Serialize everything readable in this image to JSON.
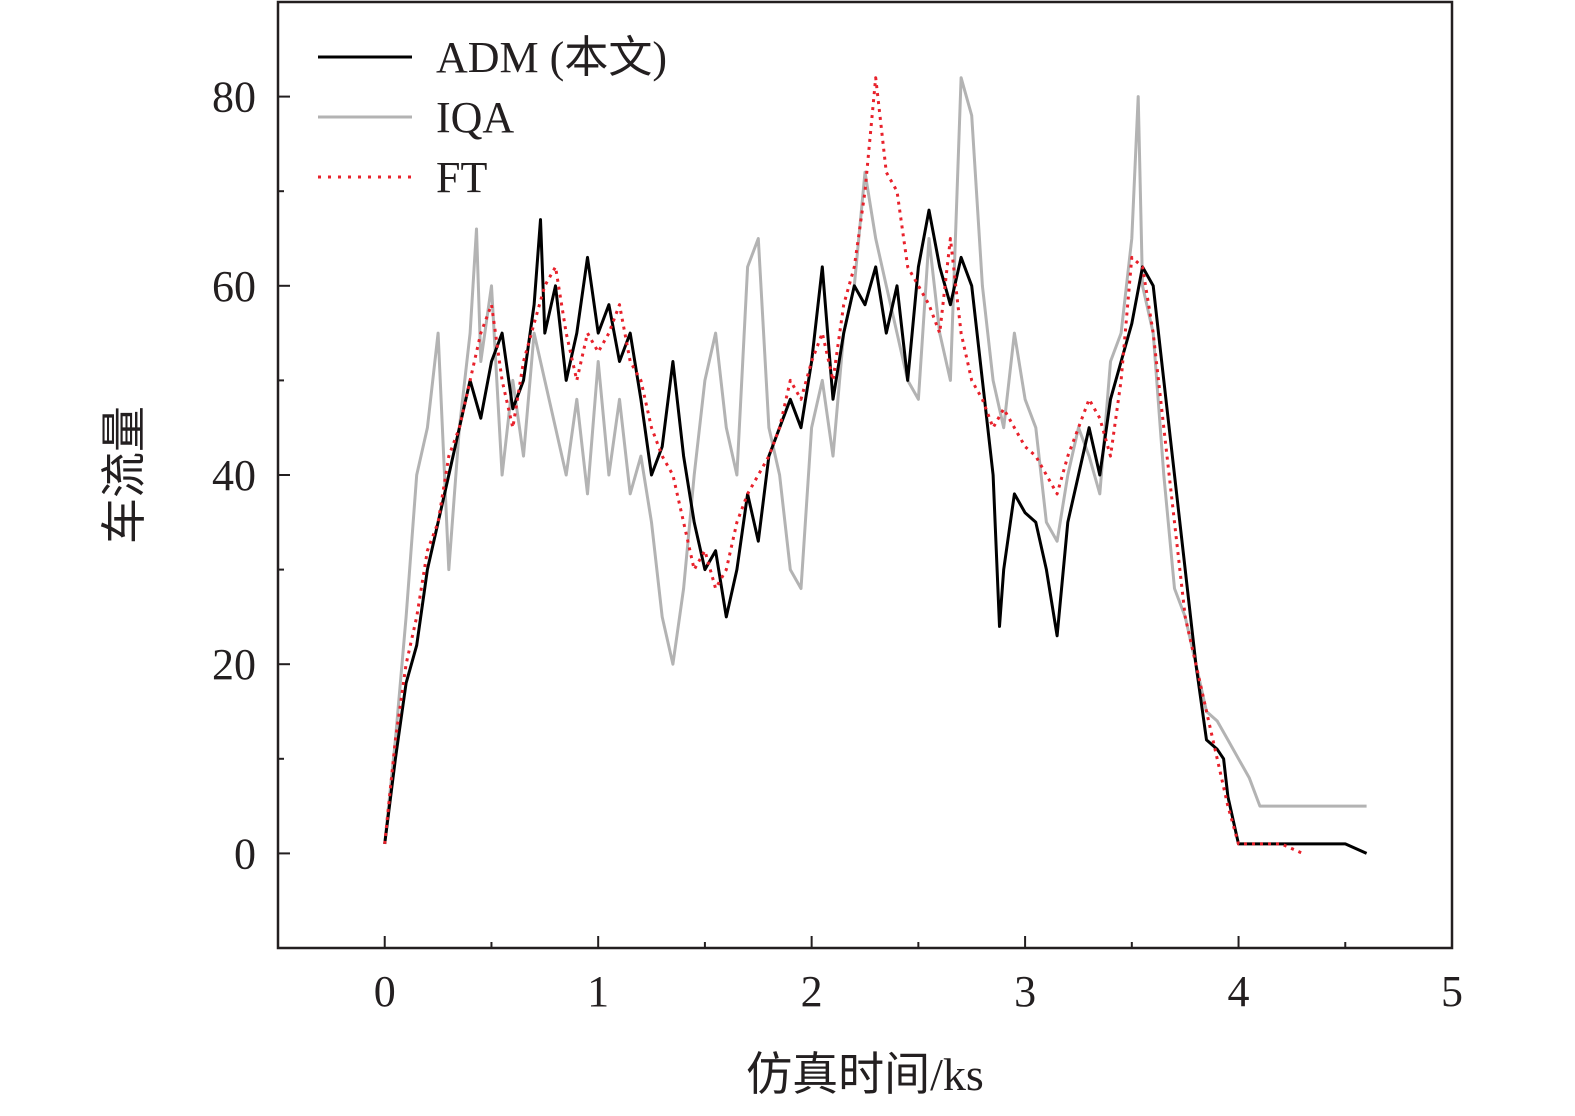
{
  "chart_data": {
    "type": "line",
    "xlabel": "仿真时间/ks",
    "ylabel": "车流量",
    "xlim": [
      -0.5,
      5
    ],
    "ylim": [
      -10,
      90
    ],
    "xticks": [
      0,
      1,
      2,
      3,
      4,
      5
    ],
    "xtick_labels": [
      "0",
      "1",
      "2",
      "3",
      "4",
      "5"
    ],
    "yticks": [
      0,
      20,
      40,
      60,
      80
    ],
    "ytick_labels": [
      "0",
      "20",
      "40",
      "60",
      "80"
    ],
    "grid": false,
    "legend_position": "top-left",
    "series": [
      {
        "name": "ADM (本文)",
        "color": "#000000",
        "style": "solid",
        "x": [
          0,
          0.05,
          0.1,
          0.15,
          0.2,
          0.25,
          0.3,
          0.35,
          0.4,
          0.45,
          0.5,
          0.55,
          0.6,
          0.65,
          0.7,
          0.73,
          0.75,
          0.8,
          0.85,
          0.9,
          0.95,
          1.0,
          1.05,
          1.1,
          1.15,
          1.2,
          1.25,
          1.3,
          1.35,
          1.4,
          1.45,
          1.5,
          1.55,
          1.6,
          1.65,
          1.7,
          1.75,
          1.8,
          1.85,
          1.9,
          1.95,
          2.0,
          2.05,
          2.1,
          2.15,
          2.2,
          2.25,
          2.3,
          2.35,
          2.4,
          2.45,
          2.5,
          2.55,
          2.6,
          2.65,
          2.7,
          2.75,
          2.8,
          2.85,
          2.88,
          2.9,
          2.95,
          3.0,
          3.05,
          3.1,
          3.15,
          3.2,
          3.25,
          3.3,
          3.35,
          3.4,
          3.45,
          3.5,
          3.55,
          3.6,
          3.65,
          3.7,
          3.75,
          3.8,
          3.85,
          3.9,
          3.93,
          3.95,
          4.0,
          4.05,
          4.1,
          4.2,
          4.3,
          4.4,
          4.5,
          4.6
        ],
        "y": [
          1,
          10,
          18,
          22,
          30,
          35,
          40,
          45,
          50,
          46,
          52,
          55,
          47,
          50,
          58,
          67,
          55,
          60,
          50,
          55,
          63,
          55,
          58,
          52,
          55,
          48,
          40,
          43,
          52,
          42,
          35,
          30,
          32,
          25,
          30,
          38,
          33,
          42,
          45,
          48,
          45,
          52,
          62,
          48,
          55,
          60,
          58,
          62,
          55,
          60,
          50,
          62,
          68,
          62,
          58,
          63,
          60,
          50,
          40,
          24,
          30,
          38,
          36,
          35,
          30,
          23,
          35,
          40,
          45,
          40,
          48,
          52,
          56,
          62,
          60,
          50,
          40,
          30,
          20,
          12,
          11,
          10,
          6,
          1,
          1,
          1,
          1,
          1,
          1,
          1,
          0
        ]
      },
      {
        "name": "IQA",
        "color": "#b3b3b3",
        "style": "solid",
        "x": [
          0,
          0.05,
          0.1,
          0.15,
          0.2,
          0.25,
          0.3,
          0.35,
          0.4,
          0.43,
          0.45,
          0.5,
          0.55,
          0.6,
          0.65,
          0.7,
          0.75,
          0.8,
          0.85,
          0.9,
          0.95,
          1.0,
          1.05,
          1.1,
          1.15,
          1.2,
          1.25,
          1.3,
          1.35,
          1.4,
          1.45,
          1.5,
          1.55,
          1.6,
          1.65,
          1.7,
          1.75,
          1.8,
          1.85,
          1.9,
          1.95,
          2.0,
          2.05,
          2.1,
          2.15,
          2.2,
          2.25,
          2.3,
          2.35,
          2.4,
          2.45,
          2.5,
          2.55,
          2.6,
          2.65,
          2.7,
          2.75,
          2.8,
          2.85,
          2.9,
          2.95,
          3.0,
          3.05,
          3.1,
          3.15,
          3.2,
          3.25,
          3.3,
          3.35,
          3.4,
          3.45,
          3.5,
          3.53,
          3.55,
          3.6,
          3.65,
          3.7,
          3.75,
          3.8,
          3.85,
          3.9,
          3.95,
          4.0,
          4.05,
          4.1,
          4.2,
          4.3,
          4.4,
          4.5,
          4.6
        ],
        "y": [
          1,
          12,
          25,
          40,
          45,
          55,
          30,
          45,
          55,
          66,
          52,
          60,
          40,
          50,
          42,
          55,
          50,
          45,
          40,
          48,
          38,
          52,
          40,
          48,
          38,
          42,
          35,
          25,
          20,
          28,
          40,
          50,
          55,
          45,
          40,
          62,
          65,
          45,
          40,
          30,
          28,
          45,
          50,
          42,
          55,
          60,
          72,
          65,
          60,
          55,
          50,
          48,
          65,
          55,
          50,
          82,
          78,
          60,
          50,
          45,
          55,
          48,
          45,
          35,
          33,
          40,
          45,
          42,
          38,
          52,
          55,
          65,
          80,
          60,
          55,
          40,
          28,
          25,
          20,
          15,
          14,
          12,
          10,
          8,
          5,
          5,
          5,
          5,
          5,
          5
        ]
      },
      {
        "name": "FT",
        "color": "#e8212b",
        "style": "dotted",
        "x": [
          0,
          0.05,
          0.1,
          0.15,
          0.2,
          0.25,
          0.3,
          0.35,
          0.4,
          0.45,
          0.5,
          0.55,
          0.6,
          0.65,
          0.7,
          0.75,
          0.8,
          0.85,
          0.9,
          0.95,
          1.0,
          1.05,
          1.1,
          1.15,
          1.2,
          1.25,
          1.3,
          1.35,
          1.4,
          1.45,
          1.5,
          1.55,
          1.6,
          1.65,
          1.7,
          1.75,
          1.8,
          1.85,
          1.9,
          1.95,
          2.0,
          2.05,
          2.1,
          2.15,
          2.2,
          2.25,
          2.3,
          2.35,
          2.4,
          2.45,
          2.5,
          2.55,
          2.6,
          2.65,
          2.7,
          2.75,
          2.8,
          2.85,
          2.9,
          2.95,
          3.0,
          3.05,
          3.1,
          3.15,
          3.2,
          3.25,
          3.3,
          3.35,
          3.4,
          3.45,
          3.5,
          3.55,
          3.6,
          3.65,
          3.7,
          3.75,
          3.8,
          3.85,
          3.9,
          3.95,
          4.0,
          4.1,
          4.2,
          4.3
        ],
        "y": [
          1,
          12,
          20,
          25,
          32,
          35,
          42,
          45,
          50,
          55,
          58,
          50,
          45,
          52,
          56,
          60,
          62,
          55,
          50,
          55,
          53,
          55,
          58,
          52,
          50,
          45,
          42,
          40,
          35,
          30,
          32,
          28,
          30,
          35,
          38,
          40,
          42,
          45,
          50,
          48,
          52,
          55,
          50,
          58,
          62,
          70,
          82,
          72,
          70,
          62,
          60,
          58,
          55,
          65,
          55,
          50,
          48,
          45,
          47,
          45,
          43,
          42,
          40,
          38,
          42,
          45,
          48,
          46,
          42,
          50,
          63,
          62,
          55,
          45,
          35,
          25,
          20,
          15,
          10,
          5,
          1,
          1,
          1,
          0
        ]
      }
    ]
  }
}
